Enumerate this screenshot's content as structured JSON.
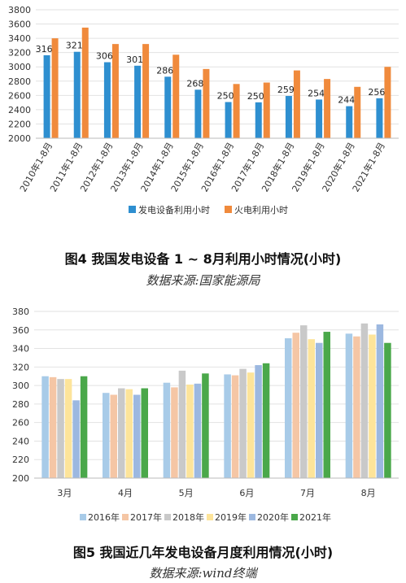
{
  "figure1": {
    "caption": "图4   我国发电设备 1 ~ 8月利用小时情况(小时)",
    "source": "数据来源:国家能源局"
  },
  "figure2": {
    "caption": "图5   我国近几年发电设备月度利用情况(小时)",
    "source": "数据来源:wind终端"
  },
  "chart_data": [
    {
      "type": "bar",
      "title": "",
      "categories": [
        "2010年1-8月",
        "2011年1-8月",
        "2012年1-8月",
        "2013年1-8月",
        "2014年1-8月",
        "2015年1-8月",
        "2016年1-8月",
        "2017年1-8月",
        "2018年1-8月",
        "2019年1-8月",
        "2020年1-8月",
        "2021年1-8月"
      ],
      "series": [
        {
          "name": "发电设备利用小时",
          "color": "#2e8fd0",
          "values": [
            3163,
            3211,
            3065,
            3016,
            2862,
            2680,
            2507,
            2503,
            2592,
            2542,
            2449,
            2560
          ],
          "data_labels": true
        },
        {
          "name": "火电利用小时",
          "color": "#f08a3c",
          "values": [
            3400,
            3550,
            3320,
            3320,
            3170,
            2970,
            2760,
            2780,
            2950,
            2830,
            2720,
            3000
          ],
          "data_labels": false
        }
      ],
      "ylim": [
        2000,
        3800
      ],
      "yticks": [
        2000,
        2200,
        2400,
        2600,
        2800,
        3000,
        3200,
        3400,
        3600,
        3800
      ],
      "grid": true,
      "legend": "bottom"
    },
    {
      "type": "bar",
      "title": "",
      "categories": [
        "3月",
        "4月",
        "5月",
        "6月",
        "7月",
        "8月"
      ],
      "series": [
        {
          "name": "2016年",
          "color": "#a8cbe8",
          "values": [
            310,
            292,
            303,
            312,
            351,
            356
          ]
        },
        {
          "name": "2017年",
          "color": "#f5c6a5",
          "values": [
            309,
            290,
            298,
            311,
            357,
            353
          ]
        },
        {
          "name": "2018年",
          "color": "#c9c9c9",
          "values": [
            307,
            297,
            316,
            318,
            365,
            367
          ]
        },
        {
          "name": "2019年",
          "color": "#fde49a",
          "values": [
            307,
            296,
            301,
            314,
            350,
            355
          ]
        },
        {
          "name": "2020年",
          "color": "#9cb8e0",
          "values": [
            284,
            290,
            302,
            322,
            346,
            366
          ]
        },
        {
          "name": "2021年",
          "color": "#4aa84a",
          "values": [
            310,
            297,
            313,
            324,
            358,
            346
          ]
        }
      ],
      "ylim": [
        200,
        380
      ],
      "yticks": [
        200,
        220,
        240,
        260,
        280,
        300,
        320,
        340,
        360,
        380
      ],
      "grid": true,
      "legend": "bottom"
    }
  ]
}
